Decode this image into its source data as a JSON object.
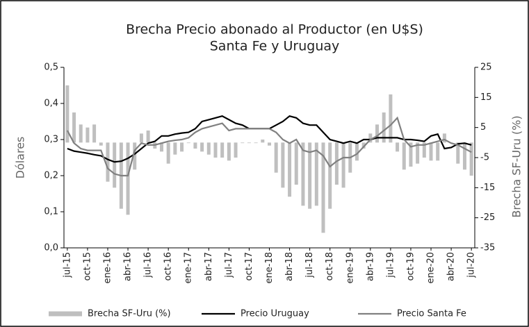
{
  "chart_data": {
    "type": "combo",
    "title": "Brecha Precio abonado al Productor (en U$S)",
    "subtitle": "Santa Fe y Uruguay",
    "ylabel": "Dólares",
    "y2label": "Brecha SF-Uru (%)",
    "categories": [
      "jul-15",
      null,
      null,
      "oct-15",
      null,
      null,
      "ene-16",
      null,
      null,
      "abr-16",
      null,
      null,
      "jul-16",
      null,
      null,
      "oct-16",
      null,
      null,
      "ene-17",
      null,
      null,
      "abr-17",
      null,
      null,
      "jul-17",
      null,
      null,
      "oct-17",
      null,
      null,
      "ene-18",
      null,
      null,
      "abr-18",
      null,
      null,
      "jul-18",
      null,
      null,
      "oct-18",
      null,
      null,
      "ene-19",
      null,
      null,
      "abr-19",
      null,
      null,
      "jul-19",
      null,
      null,
      "oct-19",
      null,
      null,
      "ene-20",
      null,
      null,
      "abr-20",
      null,
      null,
      "jul-20"
    ],
    "ylim": [
      0,
      0.5
    ],
    "yticks": [
      {
        "value": 0,
        "label": "0,0"
      },
      {
        "value": 0.1,
        "label": "0,1"
      },
      {
        "value": 0.2,
        "label": "0,2"
      },
      {
        "value": 0.3,
        "label": "0,3"
      },
      {
        "value": 0.4,
        "label": "0,4"
      },
      {
        "value": 0.5,
        "label": "0,5"
      }
    ],
    "y2lim": [
      -35,
      25
    ],
    "y2ticks": [
      -35,
      -25,
      -15,
      -5,
      5,
      15,
      25
    ],
    "series": [
      {
        "name": "Brecha SF-Uru (%)",
        "type": "bar",
        "axis": "y2",
        "color": "#bfbfbf",
        "values": [
          19,
          10,
          6,
          5,
          6,
          -1,
          -13,
          -15,
          -22,
          -24,
          -9,
          3,
          4,
          -2,
          -3,
          -7,
          -4,
          -3,
          0,
          -2,
          -3,
          -4,
          -5,
          -5,
          -6,
          -5,
          0,
          0,
          0,
          1,
          -1,
          -10,
          -15,
          -18,
          -14,
          -21,
          -22,
          -21,
          -30,
          -22,
          -14,
          -15,
          -10,
          -6,
          -2,
          3,
          6,
          10,
          16,
          -3,
          -9,
          -8,
          -7,
          -5,
          -6,
          -6,
          3,
          0,
          -7,
          -9,
          -11
        ]
      },
      {
        "name": "Precio Uruguay",
        "type": "line",
        "color": "#000000",
        "values": [
          0.275,
          0.268,
          0.265,
          0.262,
          0.258,
          0.255,
          0.245,
          0.238,
          0.24,
          0.248,
          0.26,
          0.275,
          0.29,
          0.295,
          0.31,
          0.31,
          0.315,
          0.318,
          0.32,
          0.33,
          0.35,
          0.355,
          0.36,
          0.365,
          0.355,
          0.345,
          0.34,
          0.33,
          0.33,
          0.33,
          0.33,
          0.34,
          0.35,
          0.365,
          0.36,
          0.345,
          0.34,
          0.34,
          0.32,
          0.3,
          0.295,
          0.29,
          0.295,
          0.29,
          0.3,
          0.3,
          0.305,
          0.305,
          0.305,
          0.305,
          0.3,
          0.3,
          0.298,
          0.295,
          0.31,
          0.315,
          0.275,
          0.278,
          0.288,
          0.29,
          0.285
        ]
      },
      {
        "name": "Precio Santa Fe",
        "type": "line",
        "color": "#808080",
        "values": [
          0.325,
          0.29,
          0.275,
          0.27,
          0.27,
          0.27,
          0.22,
          0.205,
          0.2,
          0.2,
          0.27,
          0.29,
          0.285,
          0.285,
          0.29,
          0.295,
          0.298,
          0.3,
          0.305,
          0.32,
          0.33,
          0.335,
          0.34,
          0.345,
          0.325,
          0.33,
          0.33,
          0.33,
          0.33,
          0.33,
          0.33,
          0.32,
          0.3,
          0.29,
          0.3,
          0.27,
          0.265,
          0.27,
          0.255,
          0.225,
          0.24,
          0.25,
          0.25,
          0.26,
          0.28,
          0.3,
          0.31,
          0.325,
          0.34,
          0.36,
          0.3,
          0.28,
          0.285,
          0.285,
          0.29,
          0.295,
          0.3,
          0.29,
          0.285,
          0.275,
          0.265
        ]
      }
    ]
  }
}
